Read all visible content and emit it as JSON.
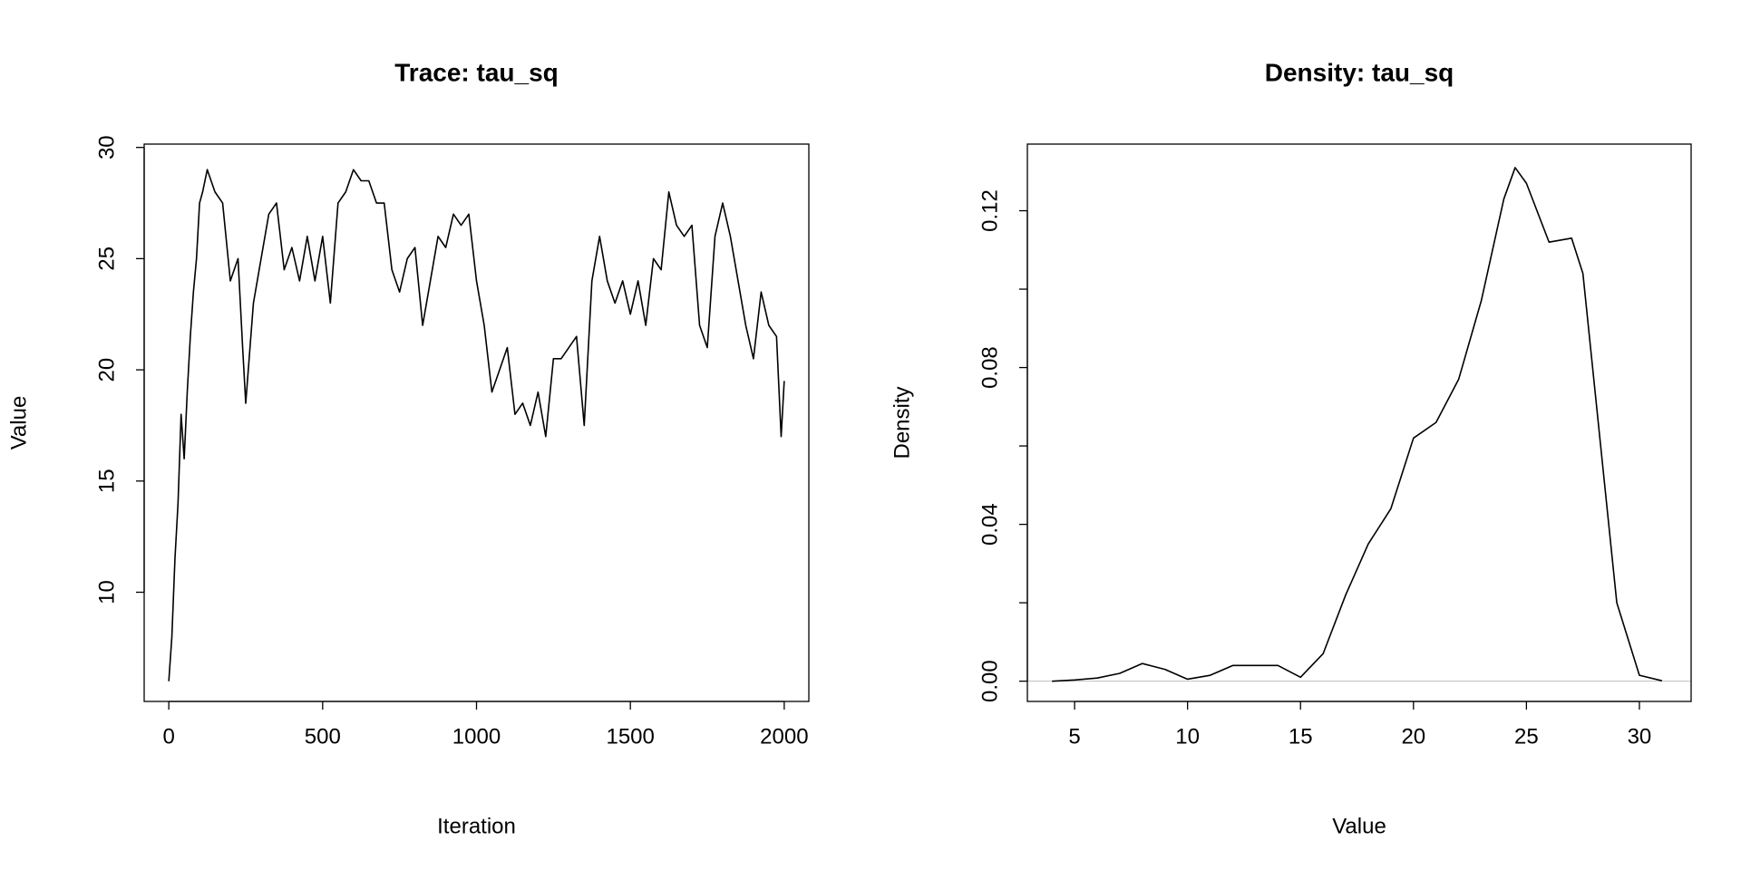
{
  "chart_data": [
    {
      "type": "line",
      "title": "Trace: tau_sq",
      "x_label": "Iteration",
      "y_label": "Value",
      "color": "#000000",
      "x": [
        0,
        10,
        20,
        30,
        40,
        50,
        60,
        70,
        80,
        90,
        100,
        110,
        125,
        150,
        175,
        200,
        225,
        240,
        250,
        275,
        300,
        325,
        350,
        375,
        400,
        425,
        450,
        475,
        500,
        525,
        550,
        575,
        600,
        625,
        650,
        675,
        700,
        725,
        750,
        775,
        800,
        825,
        850,
        875,
        900,
        925,
        950,
        975,
        1000,
        1025,
        1050,
        1075,
        1100,
        1125,
        1150,
        1175,
        1200,
        1225,
        1250,
        1275,
        1300,
        1325,
        1350,
        1375,
        1400,
        1425,
        1450,
        1475,
        1500,
        1525,
        1550,
        1575,
        1600,
        1625,
        1650,
        1675,
        1700,
        1725,
        1750,
        1775,
        1800,
        1825,
        1850,
        1875,
        1900,
        1925,
        1950,
        1975,
        1990,
        2000
      ],
      "values": [
        6,
        8,
        11.5,
        14,
        18,
        16,
        19,
        21.5,
        23.5,
        25,
        27.5,
        28,
        29,
        28,
        27.5,
        24,
        25,
        21,
        18.5,
        23,
        25,
        27,
        27.5,
        24.5,
        25.5,
        24,
        26,
        24,
        26,
        23,
        27.5,
        28,
        29,
        28.5,
        28.5,
        27.5,
        27.5,
        24.5,
        23.5,
        25,
        25.5,
        22,
        24,
        26,
        25.5,
        27,
        26.5,
        27,
        24,
        22,
        19,
        20,
        21,
        18,
        18.5,
        17.5,
        19,
        17,
        20.5,
        20.5,
        21,
        21.5,
        17.5,
        24,
        26,
        24,
        23,
        24,
        22.5,
        24,
        22,
        25,
        24.5,
        28,
        26.5,
        26,
        26.5,
        22,
        21,
        26,
        27.5,
        26,
        24,
        22,
        20.5,
        23.5,
        22,
        21.5,
        17,
        19.5
      ],
      "xlim": [
        -80,
        2080
      ],
      "ylim": [
        5.09,
        30.15
      ],
      "xticks": [
        0,
        500,
        1000,
        1500,
        2000
      ],
      "yticks": [
        10,
        15,
        20,
        25,
        30
      ]
    },
    {
      "type": "line",
      "title": "Density: tau_sq",
      "x_label": "Value",
      "y_label": "Density",
      "color": "#000000",
      "zero_line": true,
      "zero_line_color": "#bebebe",
      "x": [
        4,
        5,
        6,
        7,
        8,
        9,
        10,
        11,
        12,
        13,
        14,
        15,
        16,
        17,
        18,
        19,
        20,
        21,
        22,
        23,
        24,
        24.5,
        25,
        26,
        27,
        27.5,
        28,
        29,
        30,
        31
      ],
      "values": [
        0,
        0.0003,
        0.0008,
        0.002,
        0.0045,
        0.003,
        0.0005,
        0.0015,
        0.004,
        0.004,
        0.004,
        0.001,
        0.007,
        0.022,
        0.035,
        0.044,
        0.062,
        0.066,
        0.077,
        0.097,
        0.123,
        0.131,
        0.127,
        0.112,
        0.113,
        0.104,
        0.076,
        0.02,
        0.0015,
        0.0001
      ],
      "xlim": [
        2.91,
        32.29
      ],
      "ylim": [
        -0.00517,
        0.137
      ],
      "xticks": [
        5,
        10,
        15,
        20,
        25,
        30
      ],
      "yticks": [
        {
          "value": 0,
          "label": "0.00"
        },
        {
          "value": 0.04,
          "label": "0.04"
        },
        {
          "value": 0.08,
          "label": "0.08"
        },
        {
          "value": 0.12,
          "label": "0.12"
        }
      ],
      "yticks_minor": [
        0.02,
        0.06,
        0.1
      ]
    }
  ]
}
